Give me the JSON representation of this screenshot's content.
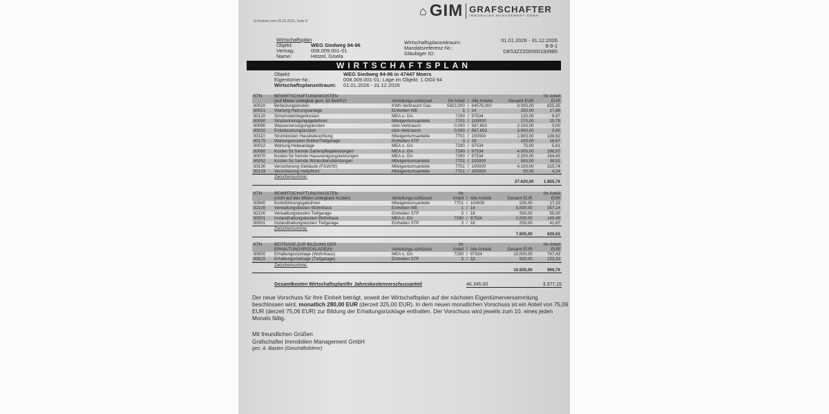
{
  "header": {
    "letter_ref": "Schreiben vom 05.03.2025, Seite 8",
    "logo_text": "GIM",
    "company_short": "GRAFSCHAFTER",
    "company_sub": "IMMOBILIEN MANAGEMENT GMBH",
    "section": "Wirtschaftsplan",
    "objekt_label": "Objekt:",
    "objekt": "WEG Siedweg 94-96",
    "vertrag_label": "Vertrag:",
    "vertrag": "008.009.001-01",
    "name_label": "Name:",
    "name": "Hötzel, Gisela",
    "zeitraum_label": "Wirtschaftsplanzeitraum:",
    "zeitraum": "01.01.2026 - 31.12.2026",
    "mandat_label": "Mandatsreferenz-Nr.:",
    "mandat": "8-9-1",
    "glaeubiger_label": "Gläubiger ID:",
    "glaeubiger": "DE53ZZZ00000193985"
  },
  "banner": "WIRTSCHAFTSPLAN",
  "info": {
    "objekt_label": "Objekt:",
    "objekt": "WEG Siedweg 94-96 in 47447 Moers",
    "eigentuemer_label": "Eigentümer-Nr.:",
    "eigentuemer": "008.009.001-01; Lage im Objekt: 1.OGli 94",
    "zeitraum_label": "Wirtschaftsplanzeitraum:",
    "zeitraum": "01.01.2026 - 31.12.2026"
  },
  "tables": [
    {
      "title": "BEWIRTSCHAFTUNGSKOSTEN",
      "subtitle": "(auf Mieter umlegbar gem. §2 BetrKV)",
      "headers": {
        "ktn": "KTN",
        "schluessel": "Verteilungs-schlüssel",
        "ihr": "Ihr Anteil",
        "alle": "Alle Anteile",
        "gesamt": "Gesamt EUR",
        "anteil": "Ihr Anteil EUR"
      },
      "rows": [
        [
          "80020",
          "Beheizungskosten",
          "KWh-Verbrauch Gas",
          "5922,000",
          "64576,000",
          "9.000,00",
          "825,35"
        ],
        [
          "80021",
          "Wartung Heizungsanlage",
          "Einheiten WE",
          "1",
          "14",
          "250,00",
          "17,86"
        ],
        [
          "80120",
          "Schornsteinfegerkosten",
          "MEA o. GA",
          "7290",
          "97534",
          "120,00",
          "8,97"
        ],
        [
          "80050",
          "Straßenreinigungsgebühren",
          "Miteigentumsanteile",
          "7701",
          "100000",
          "270,00",
          "20,79"
        ],
        [
          "80090",
          "Wasserversorgungskosten",
          "cbm-Verbrauch",
          "0,000",
          "587,653",
          "2.150,00",
          "0,00"
        ],
        [
          "80010",
          "Entwässerungskosten",
          "cbm-Verbrauch",
          "0,000",
          "587,653",
          "3.000,00",
          "0,00"
        ],
        [
          "83110",
          "Stromkosten Hausbeleuchtung",
          "Miteigentumsanteile",
          "7701",
          "100000",
          "1.800,00",
          "138,62"
        ],
        [
          "80175",
          "Wartungskosten Rolltor/Tiefgarage",
          "Einheiten STP",
          "3",
          "18",
          "100,00",
          "16,67"
        ],
        [
          "80012",
          "Wartung Hebeanlage",
          "MEA o. GA",
          "7290",
          "97534",
          "75,00",
          "5,61"
        ],
        [
          "80060",
          "Kosten für fremde Gartenpflegeleistungen",
          "MEA o. GA",
          "7290",
          "97534",
          "4.000,00",
          "298,97"
        ],
        [
          "80070",
          "Kosten für fremde Hausreinigungsleistungen",
          "MEA o. GA",
          "7290",
          "97534",
          "2.200,00",
          "164,43"
        ],
        [
          "80052",
          "Kosten für fremde Winterdienstleistungen",
          "Miteigentumsanteile",
          "7701",
          "100000",
          "500,00",
          "38,51"
        ],
        [
          "80130",
          "Versicherung Gebäude (F/LW/St)",
          "Miteigentumsanteile",
          "7701",
          "100000",
          "4.100,00",
          "315,74"
        ],
        [
          "80133",
          "Versicherung Haftpflicht",
          "Miteigentumsanteile",
          "7701",
          "100000",
          "55,00",
          "4,24"
        ]
      ],
      "subtotal_label": "Zwischensumme:",
      "subtotal_gesamt": "27.620,00",
      "subtotal_anteil": "1.855,76"
    },
    {
      "title": "BEWIRTSCHAFTUNGSKOSTEN",
      "subtitle": "(nicht auf den Mieter umlegbare Kosten)",
      "headers": {
        "ktn": "KTN",
        "schluessel": "Verteilungs-schlüssel",
        "ihr": "Ihr Anteil",
        "alle": "Alle Anteile",
        "gesamt": "Gesamt EUR",
        "anteil": "Ihr Anteil EUR"
      },
      "rows": [
        [
          "80940",
          "Kontoführungsgebühren",
          "Miteigentumsanteile",
          "7701",
          "100000",
          "225,00",
          "17,33"
        ],
        [
          "82100",
          "Verwaltungskosten Wohnhaus",
          "Einheiten WE",
          "1",
          "14",
          "5.000,00",
          "357,14"
        ],
        [
          "82100",
          "Verwaltungskosten Tiefgarage",
          "Einheiten STP",
          "3",
          "18",
          "330,00",
          "55,00"
        ],
        [
          "80501",
          "Instandhaltungskosten Wohnhaus",
          "MEA o. GA",
          "7290",
          "97534",
          "2.000,00",
          "149,49"
        ],
        [
          "80501",
          "Instandhaltungskosten Tiefgarage",
          "Einheiten STP",
          "3",
          "18",
          "250,00",
          "41,67"
        ]
      ],
      "subtotal_label": "Zwischensumme:",
      "subtotal_gesamt": "7.805,00",
      "subtotal_anteil": "620,63"
    },
    {
      "title": "BEITRÄGE ZUR BILDUNG DER",
      "subtitle": "ERHALTUNGSRÜCKLAGE(N)",
      "headers": {
        "ktn": "KTN",
        "schluessel": "Verteilungs-schlüssel",
        "ihr": "Ihr Anteil",
        "alle": "Alle Anteile",
        "gesamt": "Gesamt EUR",
        "anteil": "Ihr Anteil EUR"
      },
      "rows": [
        [
          "80900",
          "Erhaltungsrücklage (Wohnhaus)",
          "MEA o. GA",
          "7290",
          "97534",
          "10.000,00",
          "747,43"
        ],
        [
          "80815",
          "Erhaltungsrücklage (Tiefgarage)",
          "Einheiten STP",
          "3",
          "18",
          "920,00",
          "153,33"
        ]
      ],
      "subtotal_label": "Zwischensumme:",
      "subtotal_gesamt": "10.920,00",
      "subtotal_anteil": "900,76"
    }
  ],
  "total": {
    "label": "Gesamtkosten Wirtschaftsplan/Ihr Jahreskostenvorschussanteil",
    "gesamt": "46.345,00",
    "anteil": "3.377,15"
  },
  "paragraph": {
    "p1": "Der neue Vorschuss für Ihre Einheit beträgt, soweit der Wirtschaftsplan auf der nächsten Eigentümerversammlung beschlossen wird, ",
    "bold": "monatlich 280,00 EUR",
    "p2": " (derzeit 325,00 EUR). In dem neuen monatlichen Vorschuss ist ein Anteil von 75,06 EUR (derzeit 75,06 EUR) zur Bildung der Erhaltungsrücklage enthalten. Der Vorschuss wird jeweils zum 10. eines jeden Monats fällig."
  },
  "closing": {
    "greeting": "Mit freundlichen Grüßen",
    "company": "Grafschafter Immobilien Management GmbH",
    "signer": "gez. A. Basten (Geschäftsführer)"
  }
}
